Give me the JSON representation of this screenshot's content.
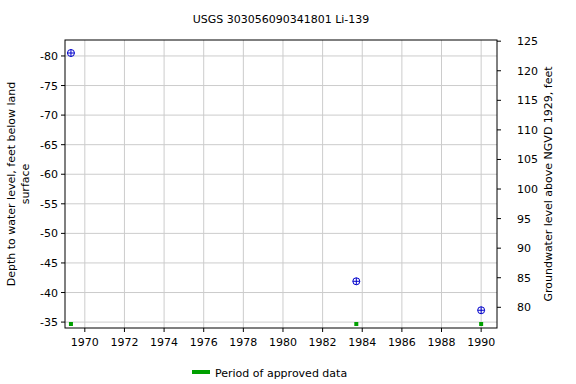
{
  "chart_data": {
    "type": "scatter",
    "title": "USGS 303056090341801 Li-139",
    "ylabel": [
      "Depth to water level, feet below land",
      "surface"
    ],
    "y2label": "Groundwater level above NGVD 1929, feet",
    "xlim": [
      1969.0,
      1990.8
    ],
    "xticks": [
      1970,
      1972,
      1974,
      1976,
      1978,
      1980,
      1982,
      1984,
      1986,
      1988,
      1990
    ],
    "ylim": [
      -34.0,
      -82.7
    ],
    "yticks": [
      -80,
      -75,
      -70,
      -65,
      -60,
      -55,
      -50,
      -45,
      -40,
      -35
    ],
    "y2lim": [
      76.5,
      125.2
    ],
    "y2ticks": [
      80,
      85,
      90,
      95,
      100,
      105,
      110,
      115,
      120,
      125
    ],
    "grid": true,
    "legend": "bottom",
    "series": [
      {
        "color": "#0000cc",
        "marker": "circle",
        "x": [
          1969.3,
          1983.7,
          1990.0
        ],
        "values": [
          -80.5,
          -41.9,
          -37.0
        ]
      },
      {
        "name": "Period of approved data",
        "color": "#00a000",
        "marker": "square",
        "type": "period",
        "x": [
          1969.3,
          1983.7,
          1990.0
        ]
      }
    ]
  }
}
